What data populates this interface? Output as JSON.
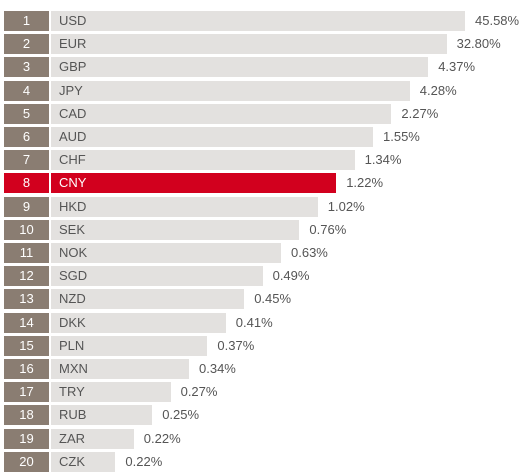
{
  "colors": {
    "rank_bg": "#8a7d72",
    "bar_bg": "#e3e1df",
    "highlight": "#d2001e",
    "text": "#555555"
  },
  "chart_data": {
    "type": "bar",
    "orientation": "horizontal",
    "title": "",
    "xlabel": "",
    "ylabel": "",
    "highlight": "CNY",
    "value_suffix": "%",
    "xlim": [
      0,
      45.58
    ],
    "grid": false,
    "rows": [
      {
        "rank": "1",
        "currency": "USD",
        "value": 45.58,
        "label": "45.58%"
      },
      {
        "rank": "2",
        "currency": "EUR",
        "value": 32.8,
        "label": "32.80%"
      },
      {
        "rank": "3",
        "currency": "GBP",
        "value": 4.37,
        "label": "4.37%"
      },
      {
        "rank": "4",
        "currency": "JPY",
        "value": 4.28,
        "label": "4.28%"
      },
      {
        "rank": "5",
        "currency": "CAD",
        "value": 2.27,
        "label": "2.27%"
      },
      {
        "rank": "6",
        "currency": "AUD",
        "value": 1.55,
        "label": "1.55%"
      },
      {
        "rank": "7",
        "currency": "CHF",
        "value": 1.34,
        "label": "1.34%"
      },
      {
        "rank": "8",
        "currency": "CNY",
        "value": 1.22,
        "label": "1.22%"
      },
      {
        "rank": "9",
        "currency": "HKD",
        "value": 1.02,
        "label": "1.02%"
      },
      {
        "rank": "10",
        "currency": "SEK",
        "value": 0.76,
        "label": "0.76%"
      },
      {
        "rank": "11",
        "currency": "NOK",
        "value": 0.63,
        "label": "0.63%"
      },
      {
        "rank": "12",
        "currency": "SGD",
        "value": 0.49,
        "label": "0.49%"
      },
      {
        "rank": "13",
        "currency": "NZD",
        "value": 0.45,
        "label": "0.45%"
      },
      {
        "rank": "14",
        "currency": "DKK",
        "value": 0.41,
        "label": "0.41%"
      },
      {
        "rank": "15",
        "currency": "PLN",
        "value": 0.37,
        "label": "0.37%"
      },
      {
        "rank": "16",
        "currency": "MXN",
        "value": 0.34,
        "label": "0.34%"
      },
      {
        "rank": "17",
        "currency": "TRY",
        "value": 0.27,
        "label": "0.27%"
      },
      {
        "rank": "18",
        "currency": "RUB",
        "value": 0.25,
        "label": "0.25%"
      },
      {
        "rank": "19",
        "currency": "ZAR",
        "value": 0.22,
        "label": "0.22%"
      },
      {
        "rank": "20",
        "currency": "CZK",
        "value": 0.22,
        "label": "0.22%"
      }
    ]
  }
}
